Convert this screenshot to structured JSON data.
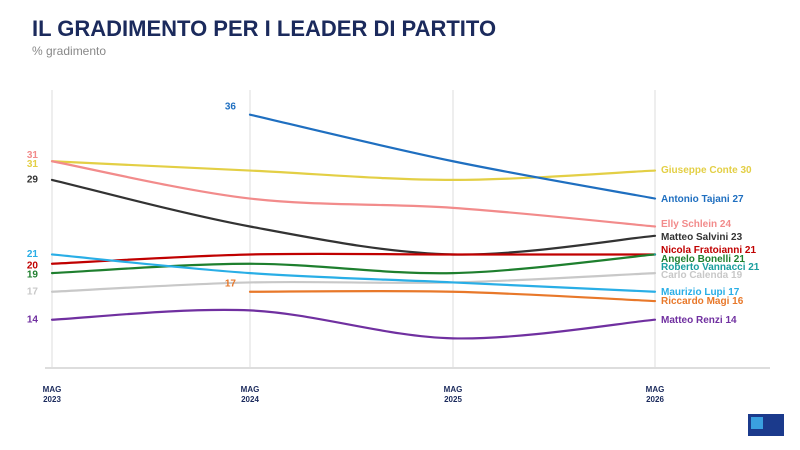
{
  "chart_data": {
    "type": "line",
    "title": "IL GRADIMENTO PER I LEADER DI PARTITO",
    "subtitle": "% gradimento",
    "categories": [
      "MAG\n2023",
      "MAG\n2024",
      "MAG\n2025",
      "MAG\n2026"
    ],
    "ylim": [
      10,
      38
    ],
    "grid": true,
    "series": [
      {
        "name": "Giuseppe Conte",
        "color": "#e3cf45",
        "values": [
          31,
          30,
          29,
          30
        ]
      },
      {
        "name": "Antonio Tajani",
        "color": "#1f6fc0",
        "values": [
          null,
          36,
          31,
          27
        ]
      },
      {
        "name": "Elly Schlein",
        "color": "#f28b8b",
        "values": [
          31,
          27,
          26,
          24
        ]
      },
      {
        "name": "Matteo Salvini",
        "color": "#333333",
        "values": [
          29,
          24,
          21,
          23
        ]
      },
      {
        "name": "Nicola Fratoianni",
        "color": "#c00000",
        "values": [
          20,
          21,
          21,
          21
        ]
      },
      {
        "name": "Angelo Bonelli",
        "color": "#1e7f2e",
        "values": [
          19,
          20,
          19,
          21
        ]
      },
      {
        "name": "Roberto Vannacci",
        "color": "#1a9e9e",
        "values": [
          null,
          null,
          null,
          21
        ]
      },
      {
        "name": "Carlo Calenda",
        "color": "#c8c8c8",
        "values": [
          17,
          18,
          18,
          19
        ]
      },
      {
        "name": "Maurizio Lupi",
        "color": "#29aee6",
        "values": [
          21,
          19,
          18,
          17
        ]
      },
      {
        "name": "Riccardo Magi",
        "color": "#e8782a",
        "values": [
          null,
          17,
          17,
          16
        ]
      },
      {
        "name": "Matteo Renzi",
        "color": "#7030a0",
        "values": [
          14,
          15,
          12,
          14
        ]
      }
    ]
  }
}
